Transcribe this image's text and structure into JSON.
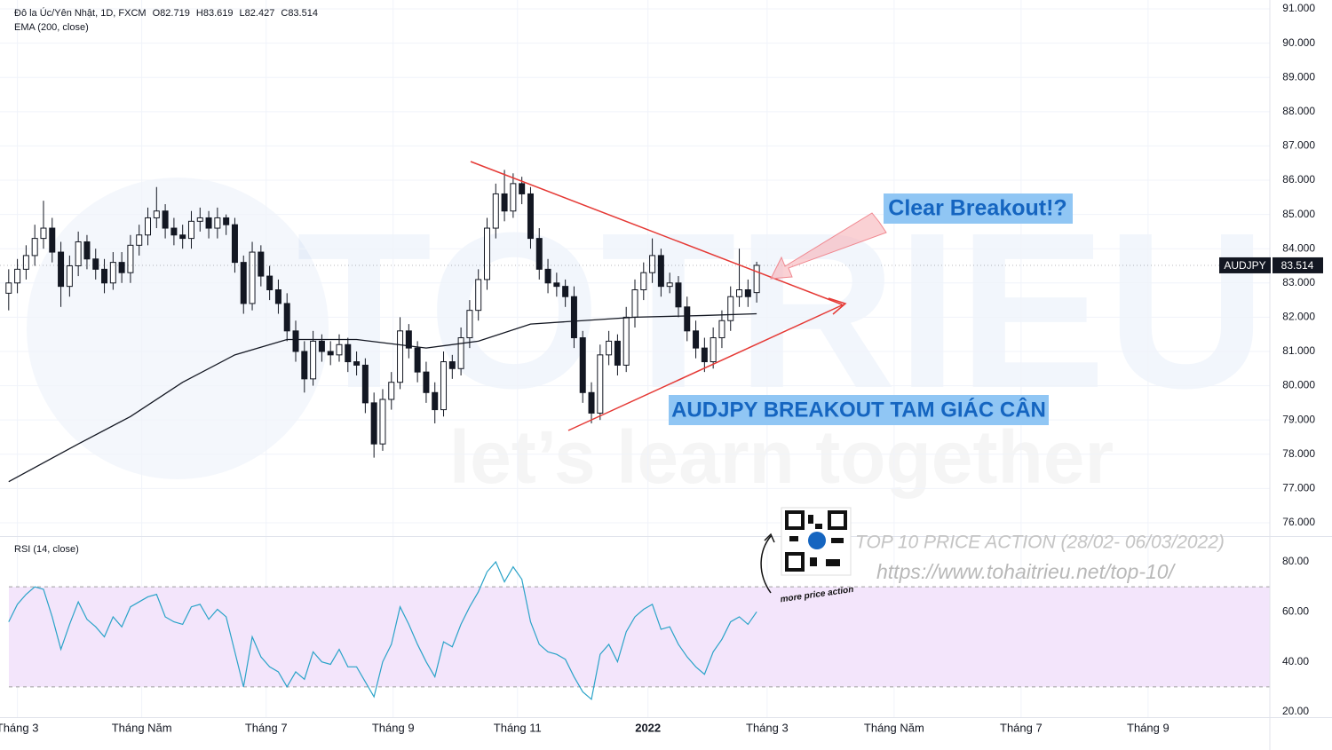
{
  "chart_data": [
    {
      "type": "candlestick",
      "title": "Đô la Úc/Yên Nhật, 1D, FXCM",
      "ohlc_labels": [
        "O82.719",
        "H83.619",
        "L82.427",
        "C83.514"
      ],
      "symbol": "AUDJPY",
      "up_color": "#ffffff",
      "down_color": "#131722",
      "border_color": "#131722",
      "open": [
        82.7,
        83.0,
        83.4,
        83.8,
        84.3,
        84.6,
        83.9,
        82.9,
        83.5,
        84.2,
        83.7,
        83.4,
        83.0,
        83.6,
        83.3,
        84.1,
        84.4,
        84.9,
        85.1,
        84.6,
        84.4,
        84.3,
        84.8,
        84.9,
        84.6,
        84.9,
        84.7,
        83.6,
        82.4,
        83.9,
        83.2,
        82.8,
        82.4,
        81.6,
        81.0,
        80.2,
        81.3,
        81.0,
        80.9,
        81.2,
        80.7,
        80.6,
        79.5,
        78.3,
        79.6,
        80.1,
        81.6,
        81.1,
        80.4,
        79.8,
        79.3,
        80.7,
        80.5,
        81.4,
        82.2,
        83.1,
        84.6,
        85.6,
        85.1,
        85.9,
        85.6,
        84.3,
        83.4,
        83.0,
        82.9,
        82.6,
        81.4,
        79.8,
        79.2,
        80.9,
        81.3,
        80.6,
        82.0,
        82.8,
        83.3,
        83.8,
        82.9,
        83.0,
        82.3,
        81.6,
        81.1,
        80.7,
        81.4,
        81.9,
        82.6,
        82.8,
        82.719
      ],
      "high": [
        83.4,
        83.7,
        84.1,
        84.7,
        85.4,
        84.9,
        84.2,
        83.8,
        84.5,
        84.4,
        84.0,
        83.7,
        83.9,
        83.9,
        84.4,
        84.7,
        85.2,
        85.8,
        85.3,
        84.9,
        84.7,
        85.1,
        85.2,
        85.1,
        85.2,
        85.0,
        84.9,
        83.8,
        84.2,
        84.1,
        83.5,
        83.1,
        82.7,
        81.9,
        81.3,
        81.6,
        81.5,
        81.3,
        81.5,
        81.4,
        81.0,
        80.8,
        79.8,
        79.9,
        80.4,
        82.0,
        81.8,
        81.3,
        80.7,
        80.1,
        81.0,
        80.9,
        81.7,
        82.5,
        83.4,
        84.9,
        85.9,
        86.3,
        86.2,
        86.1,
        85.8,
        84.6,
        83.7,
        83.3,
        83.1,
        82.9,
        81.6,
        80.1,
        81.2,
        81.6,
        81.5,
        82.3,
        83.1,
        83.6,
        84.3,
        84.0,
        83.3,
        83.2,
        82.6,
        81.9,
        81.4,
        81.7,
        82.2,
        82.9,
        84.0,
        83.1,
        83.619
      ],
      "low": [
        82.2,
        82.7,
        83.1,
        83.5,
        84.0,
        83.6,
        82.3,
        82.6,
        83.2,
        83.4,
        83.1,
        82.7,
        82.8,
        83.0,
        83.0,
        83.8,
        84.1,
        84.6,
        84.3,
        84.1,
        84.0,
        84.0,
        84.5,
        84.3,
        84.3,
        84.4,
        83.3,
        82.1,
        82.2,
        82.9,
        82.5,
        82.1,
        81.3,
        80.7,
        79.8,
        80.0,
        80.7,
        80.6,
        80.7,
        80.4,
        80.3,
        79.2,
        77.9,
        78.1,
        79.3,
        79.9,
        80.8,
        80.1,
        79.5,
        78.9,
        79.1,
        80.2,
        80.3,
        81.1,
        81.9,
        82.8,
        84.3,
        84.8,
        84.9,
        85.3,
        84.0,
        83.1,
        82.7,
        82.6,
        82.3,
        81.1,
        79.5,
        78.9,
        79.0,
        80.6,
        80.3,
        80.4,
        81.7,
        82.5,
        83.0,
        82.6,
        82.7,
        82.0,
        81.3,
        80.8,
        80.4,
        80.5,
        81.1,
        81.6,
        82.3,
        82.3,
        82.427
      ],
      "close": [
        83.0,
        83.4,
        83.8,
        84.3,
        84.6,
        83.9,
        82.9,
        83.5,
        84.2,
        83.7,
        83.4,
        83.0,
        83.6,
        83.3,
        84.1,
        84.4,
        84.9,
        85.1,
        84.6,
        84.4,
        84.3,
        84.8,
        84.9,
        84.6,
        84.9,
        84.7,
        83.6,
        82.4,
        83.9,
        83.2,
        82.8,
        82.4,
        81.6,
        81.0,
        80.2,
        81.3,
        81.0,
        80.9,
        81.2,
        80.7,
        80.6,
        79.5,
        78.3,
        79.6,
        80.1,
        81.6,
        81.1,
        80.4,
        79.8,
        79.3,
        80.7,
        80.5,
        81.4,
        82.2,
        83.1,
        84.6,
        85.6,
        85.1,
        85.9,
        85.6,
        84.3,
        83.4,
        83.0,
        82.9,
        82.6,
        81.4,
        79.8,
        79.2,
        80.9,
        81.3,
        80.6,
        82.0,
        82.8,
        83.3,
        83.8,
        82.9,
        83.0,
        82.3,
        81.6,
        81.1,
        80.7,
        81.4,
        81.9,
        82.6,
        82.8,
        82.6,
        83.514
      ],
      "ema": {
        "name": "EMA (200, close)",
        "color": "#131722",
        "x": [
          0,
          8,
          14,
          20,
          26,
          32,
          40,
          48,
          54,
          60,
          66,
          72,
          80,
          86
        ],
        "values": [
          77.2,
          78.3,
          79.1,
          80.1,
          80.9,
          81.35,
          81.35,
          81.1,
          81.3,
          81.8,
          81.9,
          82.0,
          82.05,
          82.1
        ]
      },
      "xlim": [
        -1,
        145
      ],
      "xticks": [
        {
          "value": 1,
          "label": "Tháng 3"
        },
        {
          "value": 15.3,
          "label": "Tháng Năm"
        },
        {
          "value": 29.6,
          "label": "Tháng 7"
        },
        {
          "value": 44.2,
          "label": "Tháng 9"
        },
        {
          "value": 58.5,
          "label": "Tháng 11"
        },
        {
          "value": 73.5,
          "label": "2022"
        },
        {
          "value": 87.2,
          "label": "Tháng 3"
        },
        {
          "value": 101.8,
          "label": "Tháng Năm"
        },
        {
          "value": 116.4,
          "label": "Tháng 7"
        },
        {
          "value": 131,
          "label": "Tháng 9"
        }
      ],
      "ylim": [
        75.61,
        91.26
      ],
      "yticks": [
        {
          "value": 76,
          "label": "76.000"
        },
        {
          "value": 77,
          "label": "77.000"
        },
        {
          "value": 78,
          "label": "78.000"
        },
        {
          "value": 79,
          "label": "79.000"
        },
        {
          "value": 80,
          "label": "80.000"
        },
        {
          "value": 81,
          "label": "81.000"
        },
        {
          "value": 82,
          "label": "82.000"
        },
        {
          "value": 83,
          "label": "83.000"
        },
        {
          "value": 84,
          "label": "84.000"
        },
        {
          "value": 85,
          "label": "85.000"
        },
        {
          "value": 86,
          "label": "86.000"
        },
        {
          "value": 87,
          "label": "87.000"
        },
        {
          "value": 88,
          "label": "88.000"
        },
        {
          "value": 89,
          "label": "89.000"
        },
        {
          "value": 90,
          "label": "90.000"
        },
        {
          "value": 91,
          "label": "91.000"
        }
      ],
      "grid": true,
      "annotations": [
        "Clear Breakout!?",
        "AUDJPY BREAKOUT TAM GIÁC CÂN"
      ],
      "watermark": [
        "TOTRIEU",
        "let’s learn together"
      ],
      "promo": {
        "title": "TOP 10 PRICE ACTION (28/02- 06/03/2022)",
        "url": "https://www.tohaitrieu.net/top-10/",
        "caption": "more price action"
      }
    },
    {
      "type": "line",
      "title": "RSI (14, close)",
      "series": [
        {
          "color": "#2aa3c8",
          "values": [
            56,
            63,
            67,
            70,
            69,
            58,
            45,
            55,
            64,
            57,
            54,
            50,
            58,
            54,
            62,
            64,
            66,
            67,
            58,
            56,
            55,
            62,
            63,
            57,
            61,
            58,
            44,
            30,
            50,
            42,
            38,
            36,
            30,
            36,
            33,
            44,
            40,
            39,
            45,
            38,
            38,
            32,
            26,
            40,
            47,
            62,
            55,
            47,
            40,
            34,
            48,
            46,
            55,
            62,
            68,
            76,
            80,
            72,
            78,
            73,
            56,
            47,
            44,
            43,
            41,
            34,
            28,
            25,
            43,
            47,
            40,
            52,
            58,
            61,
            63,
            53,
            54,
            47,
            42,
            38,
            35,
            44,
            49,
            56,
            58,
            55,
            60
          ]
        }
      ],
      "band": [
        30,
        70
      ],
      "band_color": "#f3e5fb",
      "ylim": [
        17.87,
        89.94
      ],
      "yticks": [
        {
          "value": 20,
          "label": "20.00"
        },
        {
          "value": 40,
          "label": "40.00"
        },
        {
          "value": 60,
          "label": "60.00"
        },
        {
          "value": 80,
          "label": "80.00"
        }
      ]
    }
  ]
}
